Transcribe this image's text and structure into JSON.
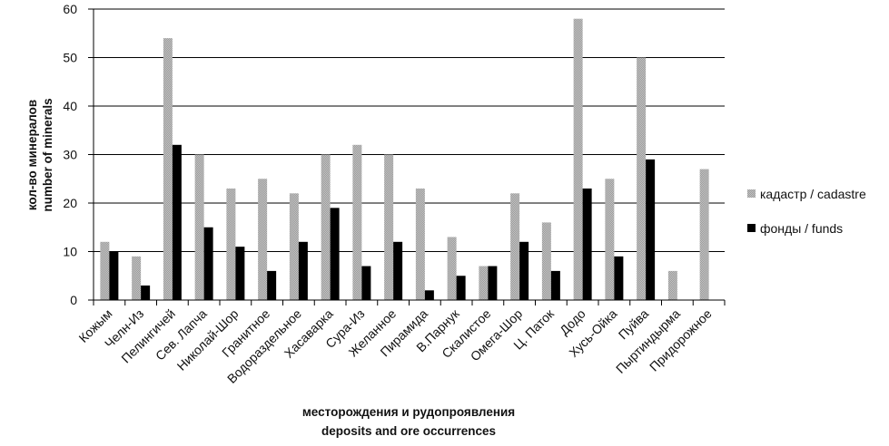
{
  "chart_data": {
    "type": "bar",
    "categories": [
      "Кожым",
      "Челн-Из",
      "Пелингичей",
      "Сев. Лапча",
      "Николай-Шор",
      "Гранитное",
      "Водораздельное",
      "Хасаварка",
      "Сура-Из",
      "Желанное",
      "Пирамида",
      "В.Парнук",
      "Скалистое",
      "Омега-Шор",
      "Ц. Паток",
      "Додо",
      "Хусь-Ойка",
      "Пуйва",
      "Пыртиндырма",
      "Придорожное"
    ],
    "series": [
      {
        "name": "кадастр / cadastre",
        "color": "#b3b3b3",
        "values": [
          12,
          9,
          54,
          30,
          23,
          25,
          22,
          30,
          32,
          30,
          23,
          13,
          7,
          22,
          16,
          58,
          25,
          50,
          6,
          27
        ]
      },
      {
        "name": "фонды / funds",
        "color": "#000000",
        "values": [
          10,
          3,
          32,
          15,
          11,
          6,
          12,
          19,
          7,
          12,
          2,
          5,
          7,
          12,
          6,
          23,
          9,
          29,
          0,
          0
        ]
      }
    ],
    "ylabel_line1": "кол-во минералов",
    "ylabel_line2": "number of minerals",
    "xlabel_line1": "месторождения и  рудопроявления",
    "xlabel_line2": "deposits  and ore occurrences",
    "ylim": [
      0,
      60
    ],
    "yticks": [
      0,
      10,
      20,
      30,
      40,
      50,
      60
    ],
    "grid": true,
    "legend_position": "right"
  }
}
